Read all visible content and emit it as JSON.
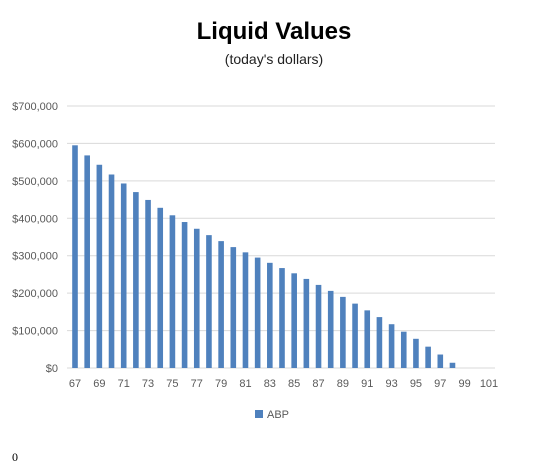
{
  "chart_data": {
    "type": "bar",
    "title": "Liquid Values",
    "subtitle": "(today's dollars)",
    "xlabel": "",
    "ylabel": "",
    "ylim": [
      0,
      700000
    ],
    "yticks": [
      0,
      100000,
      200000,
      300000,
      400000,
      500000,
      600000,
      700000
    ],
    "ytick_labels": [
      "$0",
      "$100,000",
      "$200,000",
      "$300,000",
      "$400,000",
      "$500,000",
      "$600,000",
      "$700,000"
    ],
    "xlim": [
      67,
      101
    ],
    "xticks": [
      67,
      69,
      71,
      73,
      75,
      77,
      79,
      81,
      83,
      85,
      87,
      89,
      91,
      93,
      95,
      97,
      99,
      101
    ],
    "grid": true,
    "legend_position": "bottom",
    "bar_color": "#4F81BD",
    "grid_color": "#D9D9D9",
    "series": [
      {
        "name": "ABP",
        "x": [
          67,
          68,
          69,
          70,
          71,
          72,
          73,
          74,
          75,
          76,
          77,
          78,
          79,
          80,
          81,
          82,
          83,
          84,
          85,
          86,
          87,
          88,
          89,
          90,
          91,
          92,
          93,
          94,
          95,
          96,
          97,
          98
        ],
        "values": [
          595000,
          568000,
          543000,
          517000,
          493000,
          470000,
          449000,
          428000,
          408000,
          390000,
          372000,
          355000,
          339000,
          323000,
          309000,
          295000,
          281000,
          267000,
          253000,
          238000,
          222000,
          206000,
          190000,
          172000,
          154000,
          136000,
          117000,
          97000,
          78000,
          57000,
          36000,
          14000
        ]
      }
    ]
  },
  "footer": {
    "note": "0"
  }
}
